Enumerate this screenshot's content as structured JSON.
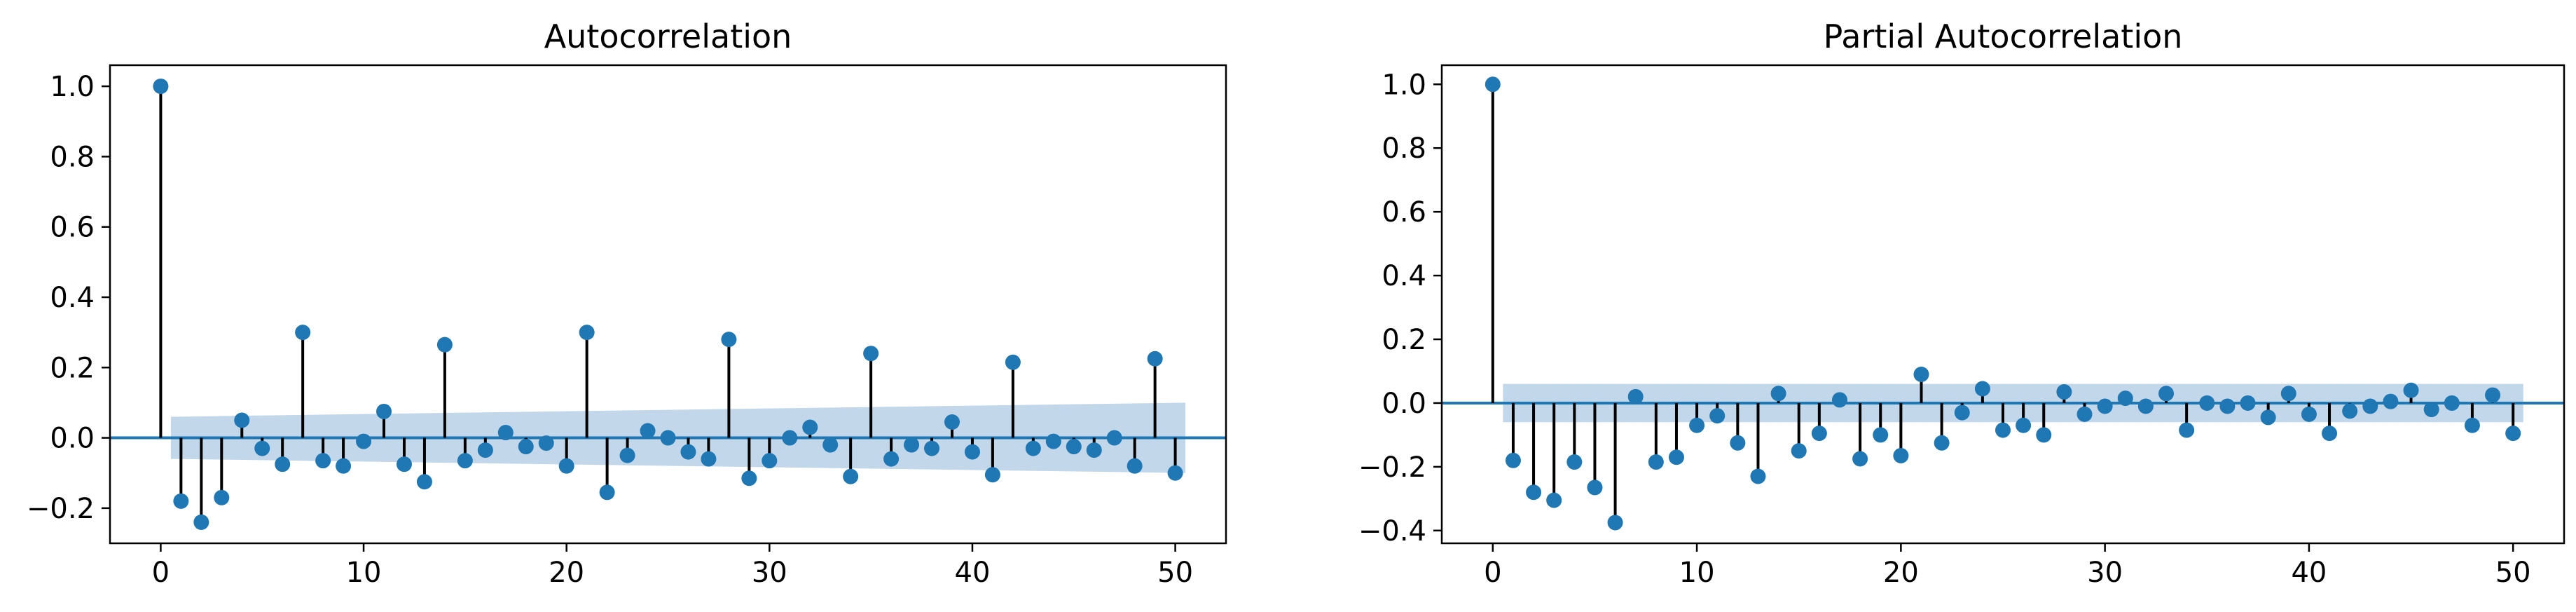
{
  "chart_data": [
    {
      "type": "stem",
      "title": "Autocorrelation",
      "xlabel": "",
      "ylabel": "",
      "xlim": [
        -2.5,
        52.5
      ],
      "ylim": [
        -0.3,
        1.06
      ],
      "xticks": [
        0,
        10,
        20,
        30,
        40,
        50
      ],
      "yticks": [
        -0.2,
        0.0,
        0.2,
        0.4,
        0.6,
        0.8,
        1.0
      ],
      "ytick_labels": [
        "−0.2",
        "0.0",
        "0.2",
        "0.4",
        "0.6",
        "0.8",
        "1.0"
      ],
      "xtick_labels": [
        "0",
        "10",
        "20",
        "30",
        "40",
        "50"
      ],
      "lags": [
        0,
        1,
        2,
        3,
        4,
        5,
        6,
        7,
        8,
        9,
        10,
        11,
        12,
        13,
        14,
        15,
        16,
        17,
        18,
        19,
        20,
        21,
        22,
        23,
        24,
        25,
        26,
        27,
        28,
        29,
        30,
        31,
        32,
        33,
        34,
        35,
        36,
        37,
        38,
        39,
        40,
        41,
        42,
        43,
        44,
        45,
        46,
        47,
        48,
        49,
        50
      ],
      "values": [
        1.0,
        -0.18,
        -0.24,
        -0.17,
        0.05,
        -0.03,
        -0.075,
        0.3,
        -0.065,
        -0.08,
        -0.01,
        0.075,
        -0.075,
        -0.125,
        0.265,
        -0.065,
        -0.035,
        0.015,
        -0.025,
        -0.015,
        -0.08,
        0.3,
        -0.155,
        -0.05,
        0.02,
        0.0,
        -0.04,
        -0.06,
        0.28,
        -0.115,
        -0.065,
        0.0,
        0.03,
        -0.02,
        -0.11,
        0.24,
        -0.06,
        -0.02,
        -0.03,
        0.045,
        -0.04,
        -0.105,
        0.215,
        -0.03,
        -0.01,
        -0.025,
        -0.035,
        0.0,
        -0.08,
        0.225,
        -0.1
      ],
      "confidence_band": {
        "lags": [
          0.5,
          50.5
        ],
        "start": 0.06,
        "end": 0.1
      },
      "grid": false
    },
    {
      "type": "stem",
      "title": "Partial Autocorrelation",
      "xlabel": "",
      "ylabel": "",
      "xlim": [
        -2.5,
        52.5
      ],
      "ylim": [
        -0.44,
        1.06
      ],
      "xticks": [
        0,
        10,
        20,
        30,
        40,
        50
      ],
      "yticks": [
        -0.4,
        -0.2,
        0.0,
        0.2,
        0.4,
        0.6,
        0.8,
        1.0
      ],
      "ytick_labels": [
        "−0.4",
        "−0.2",
        "0.0",
        "0.2",
        "0.4",
        "0.6",
        "0.8",
        "1.0"
      ],
      "xtick_labels": [
        "0",
        "10",
        "20",
        "30",
        "40",
        "50"
      ],
      "lags": [
        0,
        1,
        2,
        3,
        4,
        5,
        6,
        7,
        8,
        9,
        10,
        11,
        12,
        13,
        14,
        15,
        16,
        17,
        18,
        19,
        20,
        21,
        22,
        23,
        24,
        25,
        26,
        27,
        28,
        29,
        30,
        31,
        32,
        33,
        34,
        35,
        36,
        37,
        38,
        39,
        40,
        41,
        42,
        43,
        44,
        45,
        46,
        47,
        48,
        49,
        50
      ],
      "values": [
        1.0,
        -0.18,
        -0.28,
        -0.305,
        -0.185,
        -0.265,
        -0.375,
        0.02,
        -0.185,
        -0.17,
        -0.07,
        -0.04,
        -0.125,
        -0.23,
        0.03,
        -0.15,
        -0.095,
        0.01,
        -0.175,
        -0.1,
        -0.165,
        0.09,
        -0.125,
        -0.03,
        0.045,
        -0.085,
        -0.07,
        -0.1,
        0.035,
        -0.035,
        -0.01,
        0.015,
        -0.01,
        0.03,
        -0.085,
        0.0,
        -0.01,
        0.0,
        -0.045,
        0.03,
        -0.035,
        -0.095,
        -0.025,
        -0.01,
        0.005,
        0.04,
        -0.02,
        0.0,
        -0.07,
        0.025,
        -0.095
      ],
      "confidence_band": {
        "lags": [
          0.5,
          50.5
        ],
        "start": 0.06,
        "end": 0.06
      },
      "grid": false
    }
  ],
  "colors": {
    "marker": "#1f77b4",
    "stem": "#000000",
    "zero_line": "#1f77b4",
    "band": "#b3cde3"
  }
}
